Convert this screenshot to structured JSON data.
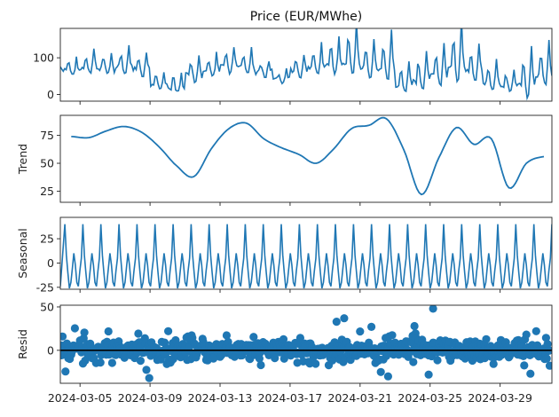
{
  "chart_data": [
    {
      "type": "line",
      "panel": "observed",
      "title": "Price (EUR/MWhe)",
      "ylabel": "",
      "ylim": [
        -18,
        180
      ],
      "yticks": [
        0,
        100
      ],
      "x": [
        "2024-03-04",
        "2024-03-05",
        "2024-03-06",
        "2024-03-07",
        "2024-03-08",
        "2024-03-09",
        "2024-03-10",
        "2024-03-11",
        "2024-03-12",
        "2024-03-13",
        "2024-03-14",
        "2024-03-15",
        "2024-03-16",
        "2024-03-17",
        "2024-03-18",
        "2024-03-19",
        "2024-03-20",
        "2024-03-21",
        "2024-03-22",
        "2024-03-23",
        "2024-03-24",
        "2024-03-25",
        "2024-03-26",
        "2024-03-27",
        "2024-03-28",
        "2024-03-29",
        "2024-03-30",
        "2024-03-31"
      ],
      "daily_peak": [
        95,
        110,
        100,
        120,
        100,
        55,
        50,
        90,
        100,
        120,
        110,
        85,
        60,
        100,
        120,
        140,
        165,
        130,
        150,
        75,
        100,
        120,
        170,
        120,
        80,
        60,
        110,
        120
      ],
      "daily_trough": [
        55,
        60,
        60,
        62,
        55,
        20,
        5,
        40,
        55,
        60,
        60,
        50,
        35,
        50,
        55,
        60,
        60,
        55,
        40,
        10,
        15,
        30,
        40,
        45,
        15,
        10,
        0,
        30
      ],
      "color": "#1f77b4"
    },
    {
      "type": "line",
      "panel": "trend",
      "ylabel": "Trend",
      "ylim": [
        15,
        93
      ],
      "yticks": [
        25,
        50,
        75
      ],
      "x": [
        "2024-03-04",
        "2024-03-05",
        "2024-03-06",
        "2024-03-07",
        "2024-03-08",
        "2024-03-09",
        "2024-03-10",
        "2024-03-11",
        "2024-03-12",
        "2024-03-13",
        "2024-03-14",
        "2024-03-15",
        "2024-03-16",
        "2024-03-17",
        "2024-03-18",
        "2024-03-19",
        "2024-03-20",
        "2024-03-21",
        "2024-03-22",
        "2024-03-23",
        "2024-03-24",
        "2024-03-25",
        "2024-03-26",
        "2024-03-27",
        "2024-03-28",
        "2024-03-29",
        "2024-03-30",
        "2024-03-31"
      ],
      "values": [
        74,
        73,
        79,
        83,
        78,
        65,
        48,
        38,
        63,
        81,
        86,
        72,
        64,
        58,
        50,
        63,
        81,
        84,
        90,
        62,
        22,
        55,
        82,
        67,
        72,
        28,
        50,
        56
      ],
      "color": "#1f77b4"
    },
    {
      "type": "line",
      "panel": "seasonal",
      "ylabel": "Seasonal",
      "ylim": [
        -27,
        47
      ],
      "yticks": [
        -25,
        0,
        25
      ],
      "cycles": 27,
      "period_shape": [
        40,
        8,
        -10,
        -26,
        -20,
        -5,
        10,
        -2,
        -20,
        -24,
        -8,
        5,
        40
      ],
      "color": "#1f77b4"
    },
    {
      "type": "scatter",
      "panel": "resid",
      "ylabel": "Resid",
      "ylim": [
        -38,
        52
      ],
      "yticks": [
        0,
        50
      ],
      "xticks": [
        "2024-03-05",
        "2024-03-09",
        "2024-03-13",
        "2024-03-17",
        "2024-03-21",
        "2024-03-25",
        "2024-03-29"
      ],
      "baseline": 0,
      "outliers": [
        {
          "x": "2024-03-09",
          "y": -32
        },
        {
          "x": "2024-03-20",
          "y": 37
        },
        {
          "x": "2024-03-20",
          "y": 33
        },
        {
          "x": "2024-03-22",
          "y": 27
        },
        {
          "x": "2024-03-22",
          "y": -25
        },
        {
          "x": "2024-03-23",
          "y": -30
        },
        {
          "x": "2024-03-24",
          "y": 28
        },
        {
          "x": "2024-03-25",
          "y": 48
        },
        {
          "x": "2024-03-25",
          "y": -28
        },
        {
          "x": "2024-03-31",
          "y": 22
        },
        {
          "x": "2024-03-31",
          "y": -27
        }
      ],
      "color": "#1f77b4"
    }
  ]
}
